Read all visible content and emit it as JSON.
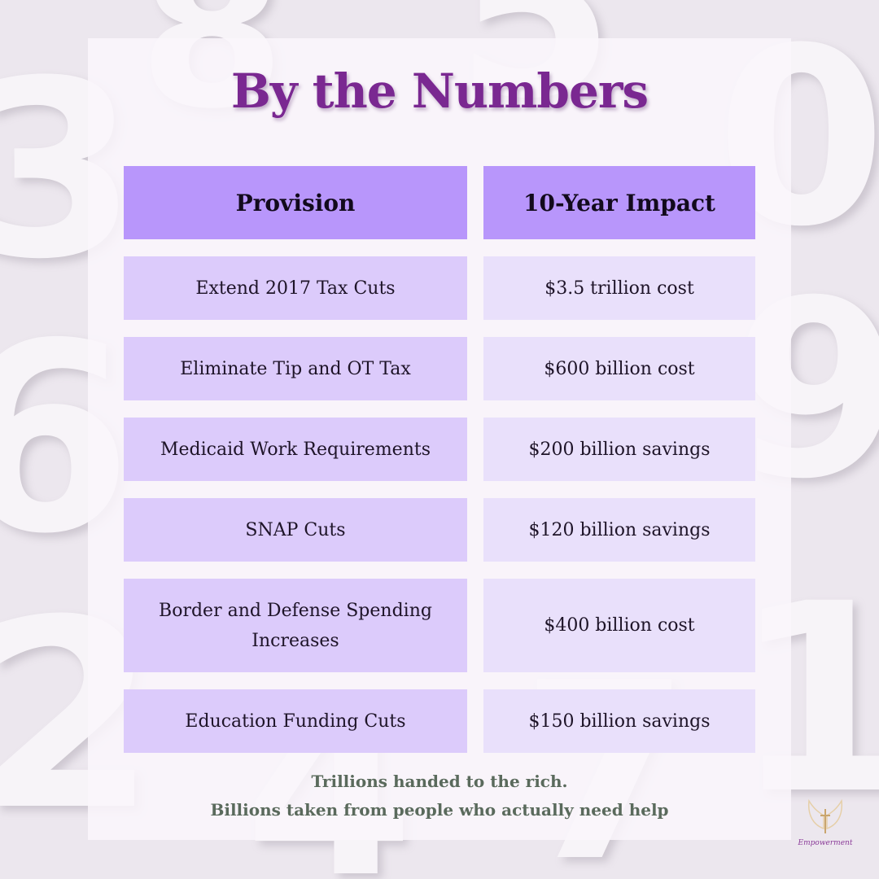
{
  "title": "By the Numbers",
  "table": {
    "headers": [
      "Provision",
      "10-Year Impact"
    ],
    "rows": [
      {
        "provision": "Extend 2017 Tax Cuts",
        "impact": "$3.5 trillion cost"
      },
      {
        "provision": "Eliminate Tip and OT Tax",
        "impact": "$600 billion cost"
      },
      {
        "provision": "Medicaid Work Requirements",
        "impact": "$200 billion savings"
      },
      {
        "provision": "SNAP Cuts",
        "impact": "$120 billion savings"
      },
      {
        "provision": "Border and Defense Spending Increases",
        "impact": "$400 billion cost"
      },
      {
        "provision": "Education Funding Cuts",
        "impact": "$150 billion savings"
      }
    ]
  },
  "footer": {
    "line1": "Trillions handed to the rich.",
    "line2": "Billions taken from people who actually need help"
  },
  "logo": {
    "text": "Empowerment",
    "icon": "angel-wings-cross-icon"
  },
  "colors": {
    "title": "#7a2891",
    "header_bg": "#b896fb",
    "provision_bg": "#dccbfb",
    "impact_bg": "#e9e0fb",
    "footer_text": "#5a6a5c"
  }
}
